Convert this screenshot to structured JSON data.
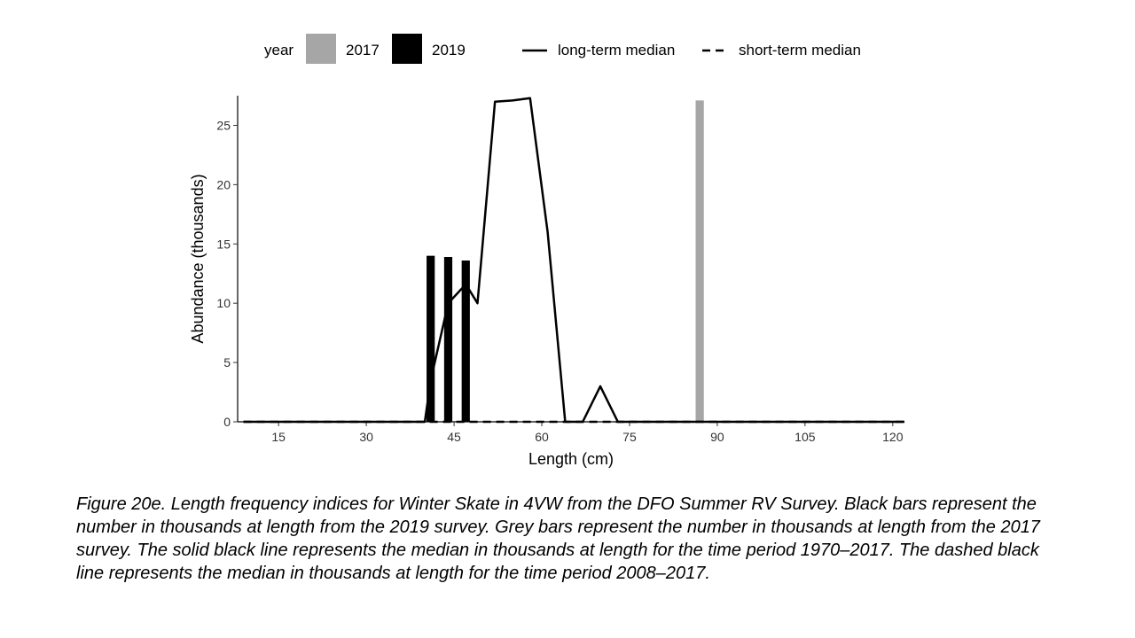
{
  "chart_data": {
    "type": "bar",
    "xlabel": "Length (cm)",
    "ylabel": "Abundance (thousands)",
    "xlim": [
      8,
      122
    ],
    "ylim": [
      0,
      27.5
    ],
    "x_ticks": [
      15,
      30,
      45,
      60,
      75,
      90,
      105,
      120
    ],
    "y_ticks": [
      0,
      5,
      10,
      15,
      20,
      25
    ],
    "grid": false,
    "legend": {
      "position": "top",
      "year_title": "year",
      "year_entries": [
        {
          "label": "2017",
          "color": "#a6a6a6"
        },
        {
          "label": "2019",
          "color": "#000000"
        }
      ],
      "line_entries": [
        {
          "label": "long-term median",
          "style": "solid"
        },
        {
          "label": "short-term median",
          "style": "dashed"
        }
      ]
    },
    "bars": [
      {
        "name": "2019",
        "color": "#000000",
        "x": [
          41,
          44,
          47
        ],
        "values": [
          14.0,
          13.9,
          13.6
        ]
      },
      {
        "name": "2017",
        "color": "#a6a6a6",
        "x": [
          87
        ],
        "values": [
          27.1
        ]
      }
    ],
    "lines": [
      {
        "name": "long-term median",
        "style": "solid",
        "x": [
          9,
          40,
          41,
          44,
          47,
          49,
          52,
          55,
          58,
          61,
          64,
          67,
          70,
          73,
          122
        ],
        "y": [
          0,
          0,
          3.5,
          10,
          11.6,
          10,
          27.0,
          27.1,
          27.3,
          16,
          0,
          0,
          3.0,
          0,
          0
        ]
      },
      {
        "name": "short-term median",
        "style": "dashed",
        "x": [
          9,
          122
        ],
        "y": [
          0,
          0
        ]
      }
    ]
  },
  "caption": "Figure 20e. Length frequency indices for Winter Skate in 4VW from the DFO Summer RV Survey. Black bars represent the number in thousands at length from the 2019 survey. Grey bars represent the number in thousands at length from the 2017 survey. The solid black line represents the median in thousands at length for the time period 1970–2017. The dashed black line represents the median in thousands at length for the time period 2008–2017."
}
